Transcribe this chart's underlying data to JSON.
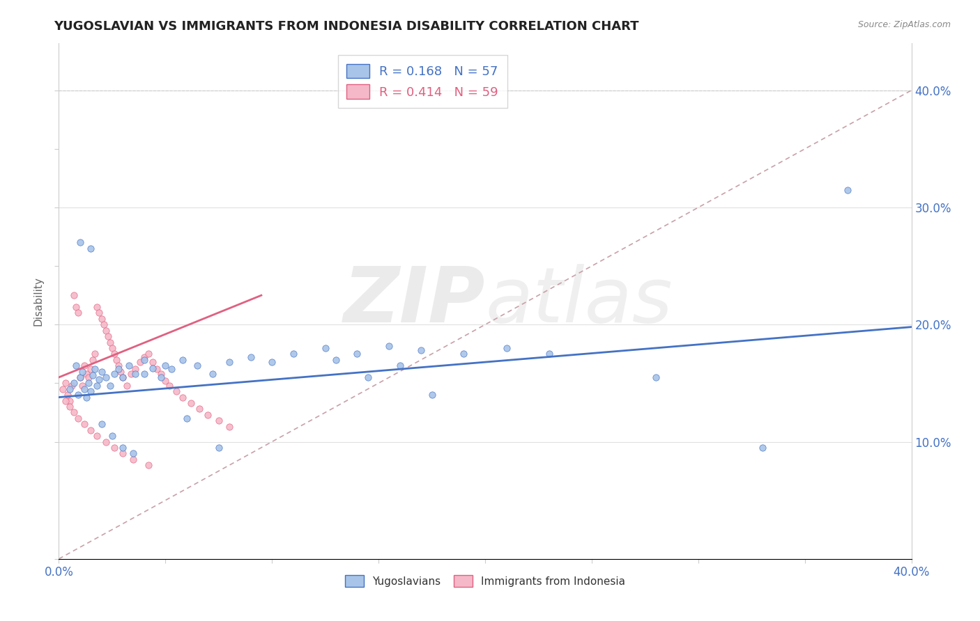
{
  "title": "YUGOSLAVIAN VS IMMIGRANTS FROM INDONESIA DISABILITY CORRELATION CHART",
  "source": "Source: ZipAtlas.com",
  "ylabel": "Disability",
  "xlim": [
    0.0,
    0.4
  ],
  "ylim": [
    0.0,
    0.44
  ],
  "blue_R": 0.168,
  "blue_N": 57,
  "pink_R": 0.414,
  "pink_N": 59,
  "blue_color": "#a8c4e8",
  "pink_color": "#f5b8c8",
  "blue_line_color": "#4472C4",
  "pink_line_color": "#E06080",
  "diagonal_color": "#c8a0a8",
  "watermark_zip": "ZIP",
  "watermark_atlas": "atlas",
  "legend_label_blue": "Yugoslavians",
  "legend_label_pink": "Immigrants from Indonesia",
  "blue_trend_x0": 0.0,
  "blue_trend_y0": 0.138,
  "blue_trend_x1": 0.4,
  "blue_trend_y1": 0.198,
  "pink_trend_x0": 0.0,
  "pink_trend_y0": 0.155,
  "pink_trend_x1": 0.095,
  "pink_trend_y1": 0.225,
  "blue_scatter_x": [
    0.005,
    0.007,
    0.008,
    0.009,
    0.01,
    0.011,
    0.012,
    0.013,
    0.014,
    0.015,
    0.016,
    0.017,
    0.018,
    0.019,
    0.02,
    0.022,
    0.024,
    0.026,
    0.028,
    0.03,
    0.033,
    0.036,
    0.04,
    0.044,
    0.048,
    0.053,
    0.058,
    0.065,
    0.072,
    0.08,
    0.09,
    0.1,
    0.11,
    0.125,
    0.14,
    0.155,
    0.17,
    0.19,
    0.21,
    0.23,
    0.01,
    0.015,
    0.02,
    0.025,
    0.03,
    0.035,
    0.04,
    0.05,
    0.06,
    0.075,
    0.13,
    0.145,
    0.16,
    0.175,
    0.28,
    0.33,
    0.37
  ],
  "blue_scatter_y": [
    0.145,
    0.15,
    0.165,
    0.14,
    0.155,
    0.16,
    0.145,
    0.138,
    0.15,
    0.143,
    0.157,
    0.162,
    0.148,
    0.153,
    0.16,
    0.155,
    0.148,
    0.158,
    0.162,
    0.155,
    0.165,
    0.158,
    0.17,
    0.163,
    0.155,
    0.162,
    0.17,
    0.165,
    0.158,
    0.168,
    0.172,
    0.168,
    0.175,
    0.18,
    0.175,
    0.182,
    0.178,
    0.175,
    0.18,
    0.175,
    0.27,
    0.265,
    0.115,
    0.105,
    0.095,
    0.09,
    0.158,
    0.165,
    0.12,
    0.095,
    0.17,
    0.155,
    0.165,
    0.14,
    0.155,
    0.095,
    0.315
  ],
  "pink_scatter_x": [
    0.002,
    0.003,
    0.004,
    0.005,
    0.006,
    0.007,
    0.008,
    0.009,
    0.01,
    0.011,
    0.012,
    0.013,
    0.014,
    0.015,
    0.016,
    0.017,
    0.018,
    0.019,
    0.02,
    0.021,
    0.022,
    0.023,
    0.024,
    0.025,
    0.026,
    0.027,
    0.028,
    0.029,
    0.03,
    0.032,
    0.034,
    0.036,
    0.038,
    0.04,
    0.042,
    0.044,
    0.046,
    0.048,
    0.05,
    0.052,
    0.055,
    0.058,
    0.062,
    0.066,
    0.07,
    0.075,
    0.08,
    0.003,
    0.005,
    0.007,
    0.009,
    0.012,
    0.015,
    0.018,
    0.022,
    0.026,
    0.03,
    0.035,
    0.042
  ],
  "pink_scatter_y": [
    0.145,
    0.15,
    0.14,
    0.135,
    0.148,
    0.225,
    0.215,
    0.21,
    0.155,
    0.148,
    0.165,
    0.158,
    0.155,
    0.162,
    0.17,
    0.175,
    0.215,
    0.21,
    0.205,
    0.2,
    0.195,
    0.19,
    0.185,
    0.18,
    0.175,
    0.17,
    0.165,
    0.16,
    0.155,
    0.148,
    0.158,
    0.162,
    0.168,
    0.172,
    0.175,
    0.168,
    0.162,
    0.158,
    0.152,
    0.148,
    0.143,
    0.138,
    0.133,
    0.128,
    0.123,
    0.118,
    0.113,
    0.135,
    0.13,
    0.125,
    0.12,
    0.115,
    0.11,
    0.105,
    0.1,
    0.095,
    0.09,
    0.085,
    0.08
  ]
}
